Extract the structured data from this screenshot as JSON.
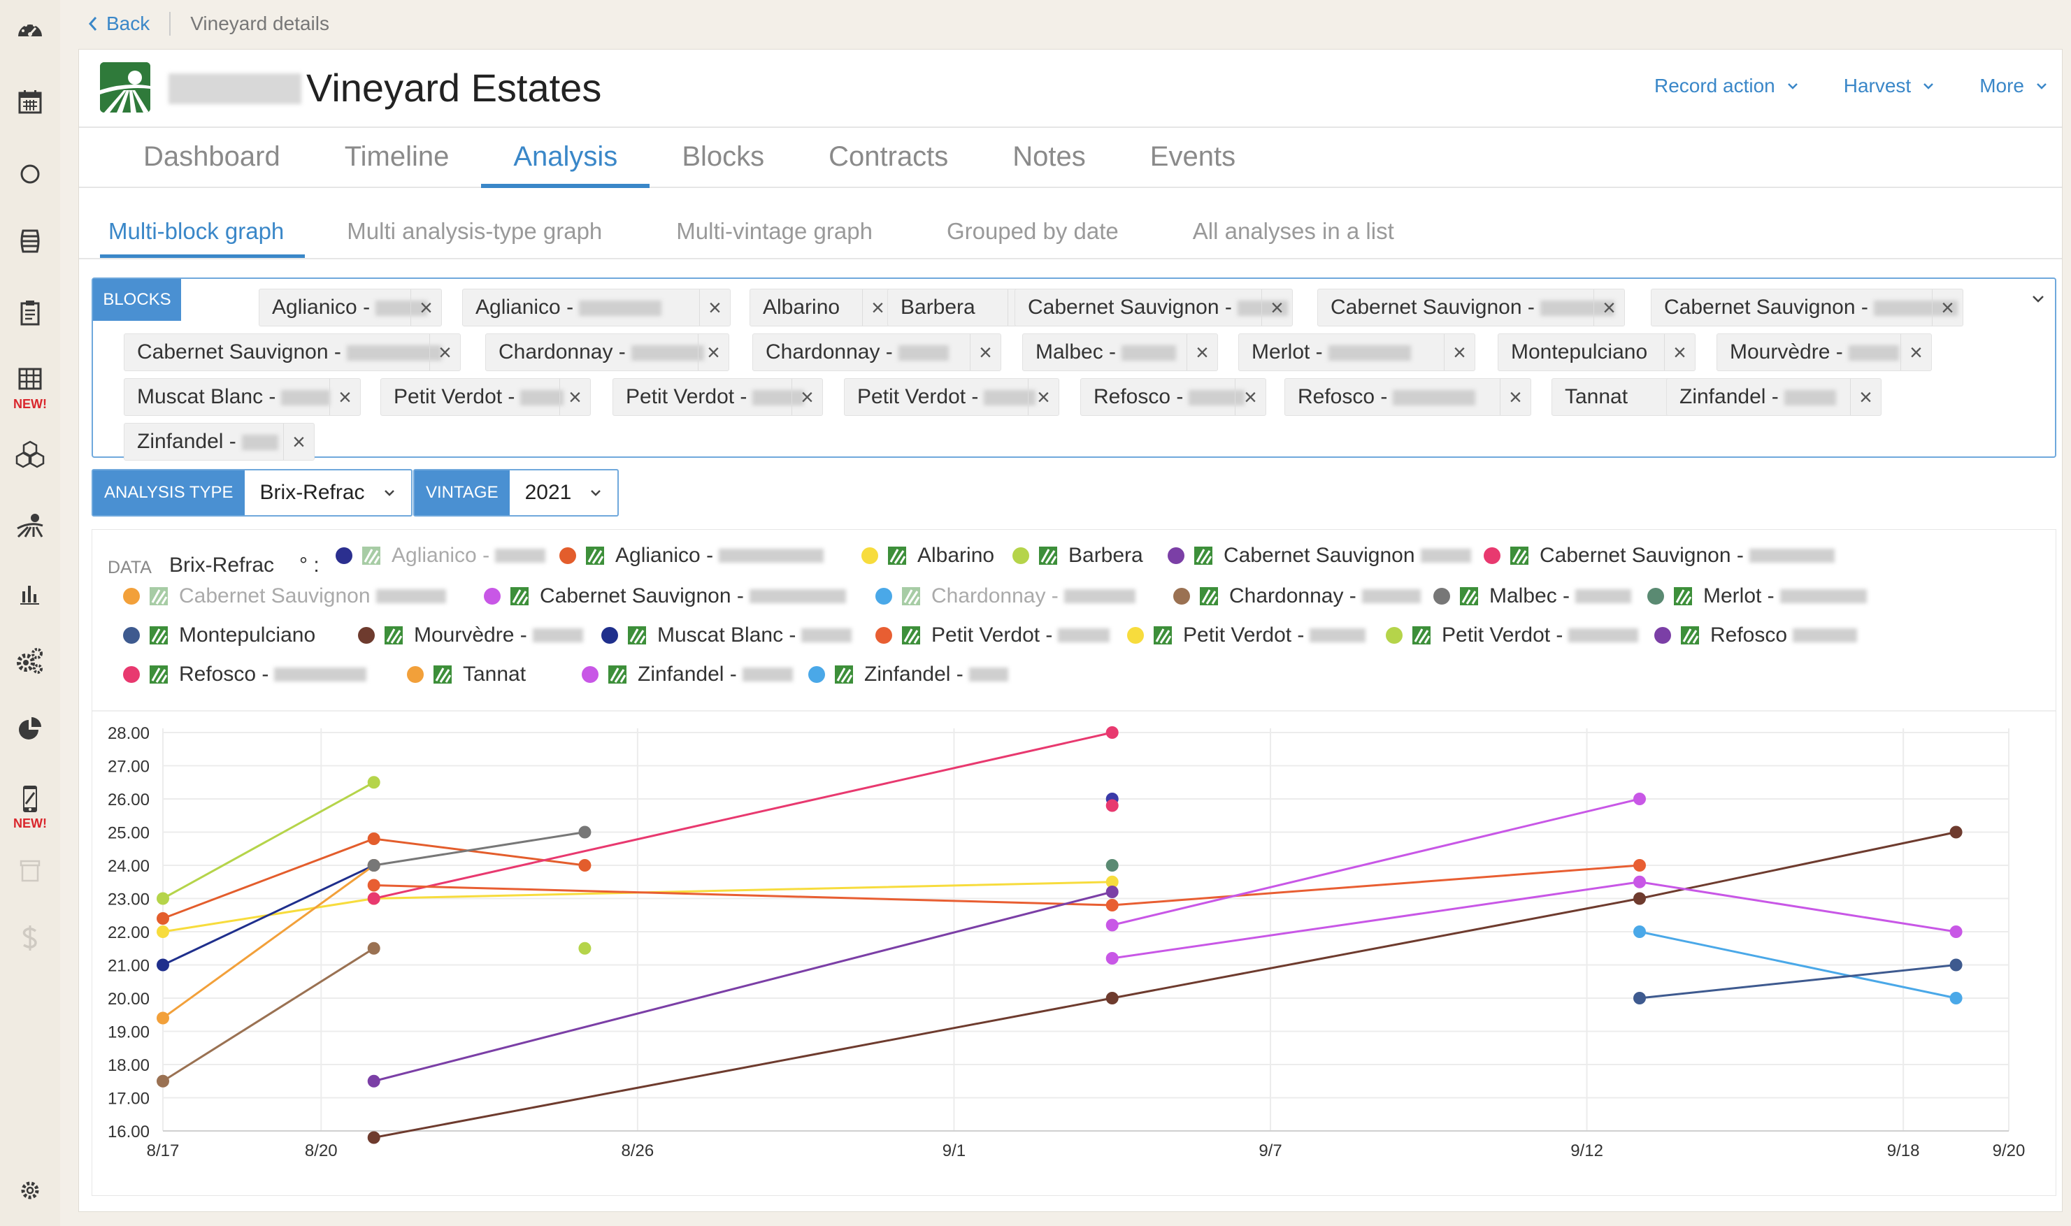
{
  "breadcrumb": {
    "back_label": "Back",
    "current": "Vineyard details"
  },
  "header": {
    "title": "Vineyard Estates",
    "actions": [
      {
        "label": "Record action"
      },
      {
        "label": "Harvest"
      },
      {
        "label": "More"
      }
    ]
  },
  "sidebar": {
    "items": [
      {
        "icon": "dashboard-gauge-icon"
      },
      {
        "icon": "calendar-icon"
      },
      {
        "icon": "circle-icon"
      },
      {
        "icon": "barrel-icon"
      },
      {
        "icon": "clipboard-icon"
      },
      {
        "icon": "grid-icon",
        "badge": "NEW!"
      },
      {
        "icon": "boxes-icon"
      },
      {
        "icon": "vineyard-icon"
      },
      {
        "icon": "bar-chart-icon"
      },
      {
        "icon": "gears-icon"
      },
      {
        "icon": "pie-chart-icon"
      },
      {
        "icon": "mobile-app-icon",
        "badge": "NEW!"
      },
      {
        "icon": "archive-icon"
      },
      {
        "icon": "dollar-icon"
      },
      {
        "icon": "settings-icon"
      }
    ],
    "accent_color": "#3a3a3a",
    "badge_color": "#d9262c"
  },
  "tabs": [
    "Dashboard",
    "Timeline",
    "Analysis",
    "Blocks",
    "Contracts",
    "Notes",
    "Events"
  ],
  "active_tab": "Analysis",
  "subtabs": [
    "Multi-block graph",
    "Multi analysis-type graph",
    "Multi-vintage graph",
    "Grouped by date",
    "All analyses in a list"
  ],
  "active_subtab": "Multi-block graph",
  "blocks_filter": {
    "label": "BLOCKS",
    "chips": [
      "Aglianico -",
      "Aglianico -",
      "Albarino",
      "Barbera",
      "Cabernet Sauvignon -",
      "Cabernet Sauvignon -",
      "Cabernet Sauvignon -",
      "Cabernet Sauvignon -",
      "Chardonnay -",
      "Chardonnay -",
      "Malbec -",
      "Merlot -",
      "Montepulciano",
      "Mourvèdre -",
      "Muscat Blanc -",
      "Petit Verdot -",
      "Petit Verdot -",
      "Petit Verdot -",
      "Refosco -",
      "Refosco -",
      "Tannat",
      "Zinfandel -",
      "Zinfandel -"
    ],
    "remove_symbol": "×"
  },
  "analysis_type": {
    "label": "ANALYSIS TYPE",
    "value": "Brix-Refrac"
  },
  "vintage": {
    "label": "VINTAGE",
    "value": "2021"
  },
  "legend": {
    "data_label": "DATA",
    "type": "Brix-Refrac",
    "unit": "° :",
    "items": [
      {
        "label": "Aglianico -",
        "color": "#2b2f8f",
        "faded": true
      },
      {
        "label": "Aglianico -",
        "color": "#e35d2c"
      },
      {
        "label": "Albarino",
        "color": "#f7dc3d"
      },
      {
        "label": "Barbera",
        "color": "#b5d44a"
      },
      {
        "label": "Cabernet Sauvignon",
        "color": "#7b3fa6"
      },
      {
        "label": "Cabernet Sauvignon -",
        "color": "#e8396f"
      },
      {
        "label": "Cabernet Sauvignon",
        "color": "#f2a03a",
        "faded": true
      },
      {
        "label": "Cabernet Sauvignon -",
        "color": "#c857e6"
      },
      {
        "label": "Chardonnay -",
        "color": "#4aa8e8",
        "faded": true
      },
      {
        "label": "Chardonnay -",
        "color": "#9a7152"
      },
      {
        "label": "Malbec -",
        "color": "#777777"
      },
      {
        "label": "Merlot -",
        "color": "#5a8a72"
      },
      {
        "label": "Montepulciano",
        "color": "#3e5a8f"
      },
      {
        "label": "Mourvèdre -",
        "color": "#6e3b2e"
      },
      {
        "label": "Muscat Blanc -",
        "color": "#1f2f8c"
      },
      {
        "label": "Petit Verdot -",
        "color": "#e85e32"
      },
      {
        "label": "Petit Verdot -",
        "color": "#f7dc3d"
      },
      {
        "label": "Petit Verdot -",
        "color": "#b5d44a"
      },
      {
        "label": "Refosco",
        "color": "#7b3fa6"
      },
      {
        "label": "Refosco -",
        "color": "#e8396f"
      },
      {
        "label": "Tannat",
        "color": "#f2a03a"
      },
      {
        "label": "Zinfandel -",
        "color": "#c857e6"
      },
      {
        "label": "Zinfandel -",
        "color": "#4aa8e8"
      }
    ]
  },
  "chart_data": {
    "type": "line",
    "xlabel": "",
    "ylabel": "",
    "x_ticks": [
      "8/17",
      "8/20",
      "8/26",
      "9/1",
      "9/7",
      "9/12",
      "9/18",
      "9/20"
    ],
    "x_tick_days": [
      0,
      3,
      9,
      15,
      21,
      27,
      33,
      35
    ],
    "y_ticks": [
      "28.00",
      "27.00",
      "26.00",
      "25.00",
      "24.00",
      "23.00",
      "22.00",
      "21.00",
      "20.00",
      "19.00",
      "18.00",
      "17.00",
      "16.00"
    ],
    "ylim": [
      16,
      28
    ],
    "grid": true,
    "series": [
      {
        "color": "#b5d44a",
        "points": [
          [
            "8/17",
            23.0
          ],
          [
            "8/21",
            26.5
          ]
        ]
      },
      {
        "color": "#b5d44a",
        "points": [
          [
            "8/25",
            21.5
          ]
        ],
        "markers_only": true
      },
      {
        "color": "#e35d2c",
        "points": [
          [
            "8/17",
            22.4
          ],
          [
            "8/21",
            24.8
          ],
          [
            "8/25",
            24.0
          ]
        ]
      },
      {
        "color": "#f7dc3d",
        "points": [
          [
            "8/17",
            22.0
          ],
          [
            "8/21",
            23.0
          ],
          [
            "9/4",
            23.5
          ]
        ]
      },
      {
        "color": "#1f2f8c",
        "points": [
          [
            "8/17",
            21.0
          ],
          [
            "8/21",
            24.0
          ]
        ]
      },
      {
        "color": "#f2a03a",
        "points": [
          [
            "8/17",
            19.4
          ],
          [
            "8/21",
            24.0
          ]
        ]
      },
      {
        "color": "#9a7152",
        "points": [
          [
            "8/17",
            17.5
          ],
          [
            "8/21",
            21.5
          ]
        ]
      },
      {
        "color": "#777777",
        "points": [
          [
            "8/21",
            24.0
          ],
          [
            "8/25",
            25.0
          ]
        ]
      },
      {
        "color": "#e8396f",
        "points": [
          [
            "8/21",
            23.0
          ],
          [
            "9/4",
            28.0
          ]
        ]
      },
      {
        "color": "#e85e32",
        "points": [
          [
            "8/21",
            23.4
          ],
          [
            "9/4",
            22.8
          ],
          [
            "9/14",
            24.0
          ]
        ]
      },
      {
        "color": "#7b3fa6",
        "points": [
          [
            "8/21",
            17.5
          ],
          [
            "9/4",
            23.2
          ]
        ]
      },
      {
        "color": "#6e3b2e",
        "points": [
          [
            "8/21",
            15.8
          ],
          [
            "9/4",
            20.0
          ],
          [
            "9/14",
            23.0
          ],
          [
            "9/20",
            25.0
          ]
        ]
      },
      {
        "color": "#c857e6",
        "points": [
          [
            "9/4",
            22.2
          ],
          [
            "9/14",
            26.0
          ]
        ]
      },
      {
        "color": "#c857e6",
        "points": [
          [
            "9/4",
            21.2
          ],
          [
            "9/14",
            23.5
          ],
          [
            "9/20",
            22.0
          ]
        ]
      },
      {
        "color": "#4aa8e8",
        "points": [
          [
            "9/14",
            22.0
          ],
          [
            "9/20",
            20.0
          ]
        ]
      },
      {
        "color": "#3e5a8f",
        "points": [
          [
            "9/14",
            20.0
          ],
          [
            "9/20",
            21.0
          ]
        ]
      },
      {
        "color": "#5a8a72",
        "points": [
          [
            "9/4",
            24.0
          ]
        ],
        "markers_only": true
      },
      {
        "color": "#3a3aa8",
        "points": [
          [
            "9/4",
            26.0
          ]
        ],
        "markers_only": true
      },
      {
        "color": "#e8396f",
        "points": [
          [
            "9/4",
            25.8
          ]
        ],
        "markers_only": true
      }
    ]
  }
}
